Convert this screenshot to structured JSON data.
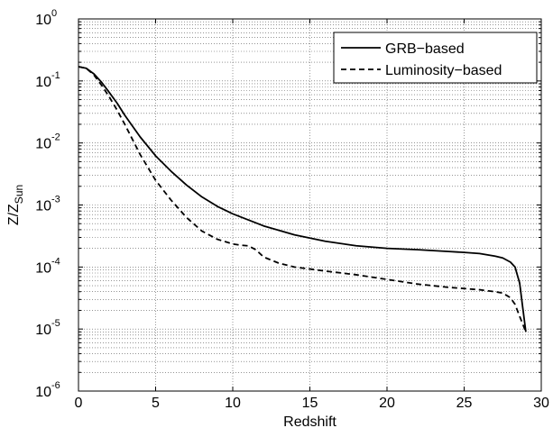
{
  "chart_data": {
    "type": "line",
    "xlabel": "Redshift",
    "ylabel_base": "Z/Z",
    "ylabel_sub": "Sun",
    "xlim": [
      0,
      30
    ],
    "ylim": [
      1e-06,
      1
    ],
    "yscale": "log",
    "grid": true,
    "legend_position": "top-right",
    "x_ticks": [
      "0",
      "5",
      "10",
      "15",
      "20",
      "25",
      "30"
    ],
    "y_ticks": [
      {
        "base": "10",
        "exp": "-6"
      },
      {
        "base": "10",
        "exp": "-5"
      },
      {
        "base": "10",
        "exp": "-4"
      },
      {
        "base": "10",
        "exp": "-3"
      },
      {
        "base": "10",
        "exp": "-2"
      },
      {
        "base": "10",
        "exp": "-1"
      },
      {
        "base": "10",
        "exp": "0"
      }
    ],
    "series": [
      {
        "name": "GRB−based",
        "style": "solid",
        "color": "#000000",
        "x": [
          0,
          0.5,
          1,
          1.5,
          2,
          2.5,
          3,
          4,
          5,
          6,
          7,
          8,
          9,
          10,
          12,
          14,
          16,
          18,
          20,
          22,
          24,
          25,
          26,
          27,
          27.5,
          28,
          28.3,
          28.6,
          28.8,
          29.0
        ],
        "y": [
          0.17,
          0.16,
          0.13,
          0.095,
          0.065,
          0.044,
          0.028,
          0.0125,
          0.0062,
          0.0035,
          0.0021,
          0.00135,
          0.00095,
          0.00072,
          0.00046,
          0.00033,
          0.00026,
          0.00022,
          0.0002,
          0.00019,
          0.000178,
          0.000172,
          0.000165,
          0.00015,
          0.00014,
          0.00012,
          0.0001,
          5.5e-05,
          2.2e-05,
          9e-06
        ]
      },
      {
        "name": "Luminosity−based",
        "style": "dashed",
        "color": "#000000",
        "x": [
          0,
          0.5,
          1,
          1.5,
          2,
          2.5,
          3,
          4,
          5,
          6,
          7,
          8,
          9,
          10,
          10.5,
          11,
          11.5,
          12,
          13,
          14,
          16,
          18,
          20,
          22,
          24,
          26,
          27,
          27.5,
          28,
          28.3,
          28.6,
          28.8,
          29.0
        ],
        "y": [
          0.17,
          0.16,
          0.125,
          0.085,
          0.055,
          0.034,
          0.02,
          0.0065,
          0.0025,
          0.0012,
          0.00063,
          0.00038,
          0.00028,
          0.000235,
          0.000225,
          0.00022,
          0.00019,
          0.000145,
          0.000115,
          0.0001,
          8.6e-05,
          7.5e-05,
          6.3e-05,
          5.3e-05,
          4.7e-05,
          4.3e-05,
          4e-05,
          3.8e-05,
          3.2e-05,
          2.5e-05,
          1.6e-05,
          1.2e-05,
          9e-06
        ]
      }
    ]
  }
}
